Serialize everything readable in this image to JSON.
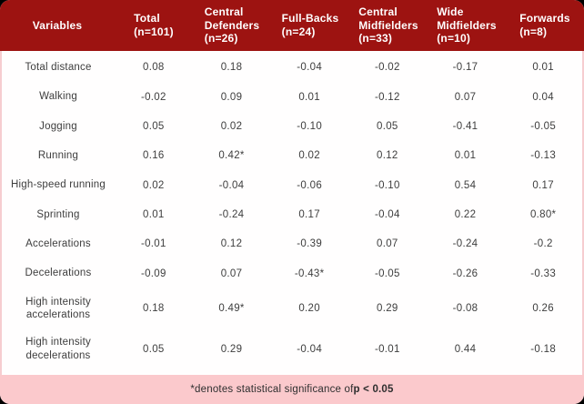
{
  "colors": {
    "header_bg": "#9D1311",
    "footer_bg": "#FBC9CC",
    "body_bg": "#FFFFFF",
    "header_text": "#FFFFFF",
    "body_text": "#3D3D3D",
    "side_border": "#F6CDD0"
  },
  "table": {
    "columns": [
      {
        "lines": [
          "Variables"
        ],
        "count": ""
      },
      {
        "lines": [
          "Total"
        ],
        "count": "(n=101)"
      },
      {
        "lines": [
          "Central",
          "Defenders"
        ],
        "count": "(n=26)"
      },
      {
        "lines": [
          "Full-Backs"
        ],
        "count": "(n=24)"
      },
      {
        "lines": [
          "Central",
          "Midfielders"
        ],
        "count": "(n=33)"
      },
      {
        "lines": [
          "Wide",
          "Midfielders"
        ],
        "count": "(n=10)"
      },
      {
        "lines": [
          "Forwards"
        ],
        "count": "(n=8)"
      }
    ],
    "rows": [
      {
        "label": "Total distance",
        "values": [
          "0.08",
          "0.18",
          "-0.04",
          "-0.02",
          "-0.17",
          "0.01"
        ]
      },
      {
        "label": "Walking",
        "values": [
          "-0.02",
          "0.09",
          "0.01",
          "-0.12",
          "0.07",
          "0.04"
        ]
      },
      {
        "label": "Jogging",
        "values": [
          "0.05",
          "0.02",
          "-0.10",
          "0.05",
          "-0.41",
          "-0.05"
        ]
      },
      {
        "label": "Running",
        "values": [
          "0.16",
          "0.42*",
          "0.02",
          "0.12",
          "0.01",
          "-0.13"
        ]
      },
      {
        "label": "High-speed running",
        "values": [
          "0.02",
          "-0.04",
          "-0.06",
          "-0.10",
          "0.54",
          "0.17"
        ]
      },
      {
        "label": "Sprinting",
        "values": [
          "0.01",
          "-0.24",
          "0.17",
          "-0.04",
          "0.22",
          "0.80*"
        ]
      },
      {
        "label": "Accelerations",
        "values": [
          "-0.01",
          "0.12",
          "-0.39",
          "0.07",
          "-0.24",
          "-0.2"
        ]
      },
      {
        "label": "Decelerations",
        "values": [
          "-0.09",
          "0.07",
          "-0.43*",
          "-0.05",
          "-0.26",
          "-0.33"
        ]
      },
      {
        "label": "High intensity\naccelerations",
        "values": [
          "0.18",
          "0.49*",
          "0.20",
          "0.29",
          "-0.08",
          "0.26"
        ]
      },
      {
        "label": "High intensity\ndecelerations",
        "values": [
          "0.05",
          "0.29",
          "-0.04",
          "-0.01",
          "0.44",
          "-0.18"
        ]
      }
    ]
  },
  "footnote": {
    "prefix": "*denotes statistical significance of ",
    "bold": "p < 0.05"
  },
  "chart_data": {
    "type": "table",
    "title": "",
    "columns": [
      "Variables",
      "Total (n=101)",
      "Central Defenders (n=26)",
      "Full-Backs (n=24)",
      "Central Midfielders (n=33)",
      "Wide Midfielders (n=10)",
      "Forwards (n=8)"
    ],
    "rows": [
      [
        "Total distance",
        0.08,
        0.18,
        -0.04,
        -0.02,
        -0.17,
        0.01
      ],
      [
        "Walking",
        -0.02,
        0.09,
        0.01,
        -0.12,
        0.07,
        0.04
      ],
      [
        "Jogging",
        0.05,
        0.02,
        -0.1,
        0.05,
        -0.41,
        -0.05
      ],
      [
        "Running",
        0.16,
        0.42,
        0.02,
        0.12,
        0.01,
        -0.13
      ],
      [
        "High-speed running",
        0.02,
        -0.04,
        -0.06,
        -0.1,
        0.54,
        0.17
      ],
      [
        "Sprinting",
        0.01,
        -0.24,
        0.17,
        -0.04,
        0.22,
        0.8
      ],
      [
        "Accelerations",
        -0.01,
        0.12,
        -0.39,
        0.07,
        -0.24,
        -0.2
      ],
      [
        "Decelerations",
        -0.09,
        0.07,
        -0.43,
        -0.05,
        -0.26,
        -0.33
      ],
      [
        "High intensity accelerations",
        0.18,
        0.49,
        0.2,
        0.29,
        -0.08,
        0.26
      ],
      [
        "High intensity decelerations",
        0.05,
        0.29,
        -0.04,
        -0.01,
        0.44,
        -0.18
      ]
    ],
    "significant_cells": [
      [
        "Running",
        "Central Defenders"
      ],
      [
        "Sprinting",
        "Forwards"
      ],
      [
        "Decelerations",
        "Full-Backs"
      ],
      [
        "High intensity accelerations",
        "Central Defenders"
      ]
    ],
    "footnote": "*denotes statistical significance of p < 0.05"
  }
}
